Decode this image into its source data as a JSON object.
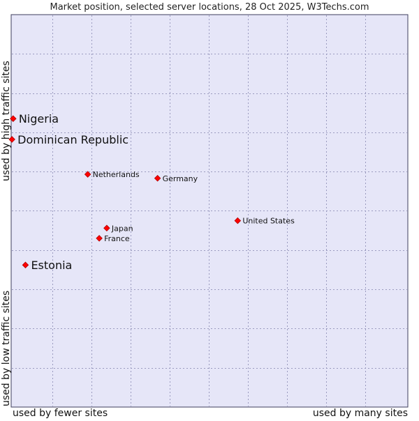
{
  "chart_data": {
    "type": "scatter",
    "title": "Market position, selected server locations, 28 Oct 2025, W3Techs.com",
    "xlabel_left": "used by fewer sites",
    "xlabel_right": "used by many sites",
    "ylabel_bottom": "used by low traffic sites",
    "ylabel_top": "used by high traffic sites",
    "xlim": [
      0,
      100
    ],
    "ylim": [
      0,
      100
    ],
    "grid": true,
    "points": [
      {
        "label": "Nigeria",
        "x": 0.5,
        "y": 73.5,
        "highlight": true
      },
      {
        "label": "Dominican Republic",
        "x": 0.2,
        "y": 68.2,
        "highlight": true
      },
      {
        "label": "Netherlands",
        "x": 19.3,
        "y": 59.3,
        "highlight": false
      },
      {
        "label": "Germany",
        "x": 36.9,
        "y": 58.3,
        "highlight": false
      },
      {
        "label": "United States",
        "x": 57.1,
        "y": 47.5,
        "highlight": false
      },
      {
        "label": "Japan",
        "x": 24.1,
        "y": 45.6,
        "highlight": false
      },
      {
        "label": "France",
        "x": 22.2,
        "y": 43.0,
        "highlight": false
      },
      {
        "label": "Estonia",
        "x": 3.6,
        "y": 36.2,
        "highlight": true
      }
    ]
  }
}
